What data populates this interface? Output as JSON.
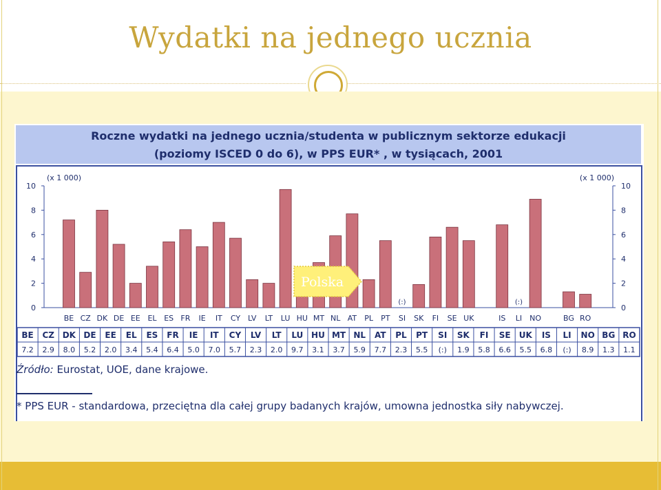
{
  "slide": {
    "title": "Wydatki na jednego ucznia"
  },
  "figure": {
    "header_line1": "Roczne wydatki na jednego ucznia/studenta w publicznym sektorze edukacji",
    "header_line2": "(poziomy ISCED 0 do 6), w PPS EUR* , w tysiącach, 2001",
    "source_label": "Źródło:",
    "source_text": " Eurostat, UOE, dane krajowe.",
    "footnote": "* PPS EUR - standardowa, przeciętna dla całej grupy badanych krajów, umowna jednostka siły nabywczej."
  },
  "callout": {
    "label": "Polska"
  },
  "colors": {
    "bar": "#c9707a",
    "bar_stroke": "#7a3440",
    "axis": "#3a4fa0",
    "text": "#1f2e6c",
    "callout_fill": "#fff07a",
    "callout_stroke": "#e3c83c"
  },
  "chart_data": {
    "type": "bar",
    "unit_label_left": "(x 1 000)",
    "unit_label_right": "(x 1 000)",
    "ylim": [
      0,
      10
    ],
    "yticks": [
      "0",
      "2",
      "4",
      "6",
      "8",
      "10"
    ],
    "categories": [
      "BE",
      "CZ",
      "DK",
      "DE",
      "EE",
      "EL",
      "ES",
      "FR",
      "IE",
      "IT",
      "CY",
      "LV",
      "LT",
      "LU",
      "HU",
      "MT",
      "NL",
      "AT",
      "PL",
      "PT",
      "SI",
      "SK",
      "FI",
      "SE",
      "UK",
      "IS",
      "LI",
      "NO",
      "BG",
      "RO"
    ],
    "values": [
      7.2,
      2.9,
      8.0,
      5.2,
      2.0,
      3.4,
      5.4,
      6.4,
      5.0,
      7.0,
      5.7,
      2.3,
      2.0,
      9.7,
      3.1,
      3.7,
      5.9,
      7.7,
      2.3,
      5.5,
      null,
      1.9,
      5.8,
      6.6,
      5.5,
      6.8,
      null,
      8.9,
      1.3,
      1.1
    ],
    "missing_label": "(:)",
    "table_headers": [
      "BE",
      "CZ",
      "DK",
      "DE",
      "EE",
      "EL",
      "ES",
      "FR",
      "IE",
      "IT",
      "CY",
      "LV",
      "LT",
      "LU",
      "HU",
      "MT",
      "NL",
      "AT",
      "PL",
      "PT",
      "SI",
      "SK",
      "FI",
      "SE",
      "UK",
      "IS",
      "LI",
      "NO",
      "BG",
      "RO"
    ],
    "table_values": [
      "7.2",
      "2.9",
      "8.0",
      "5.2",
      "2.0",
      "3.4",
      "5.4",
      "6.4",
      "5.0",
      "7.0",
      "5.7",
      "2.3",
      "2.0",
      "9.7",
      "3.1",
      "3.7",
      "5.9",
      "7.7",
      "2.3",
      "5.5",
      "(:)",
      "1.9",
      "5.8",
      "6.6",
      "5.5",
      "6.8",
      "(:)",
      "8.9",
      "1.3",
      "1.1"
    ],
    "grid": false,
    "legend": "none"
  }
}
